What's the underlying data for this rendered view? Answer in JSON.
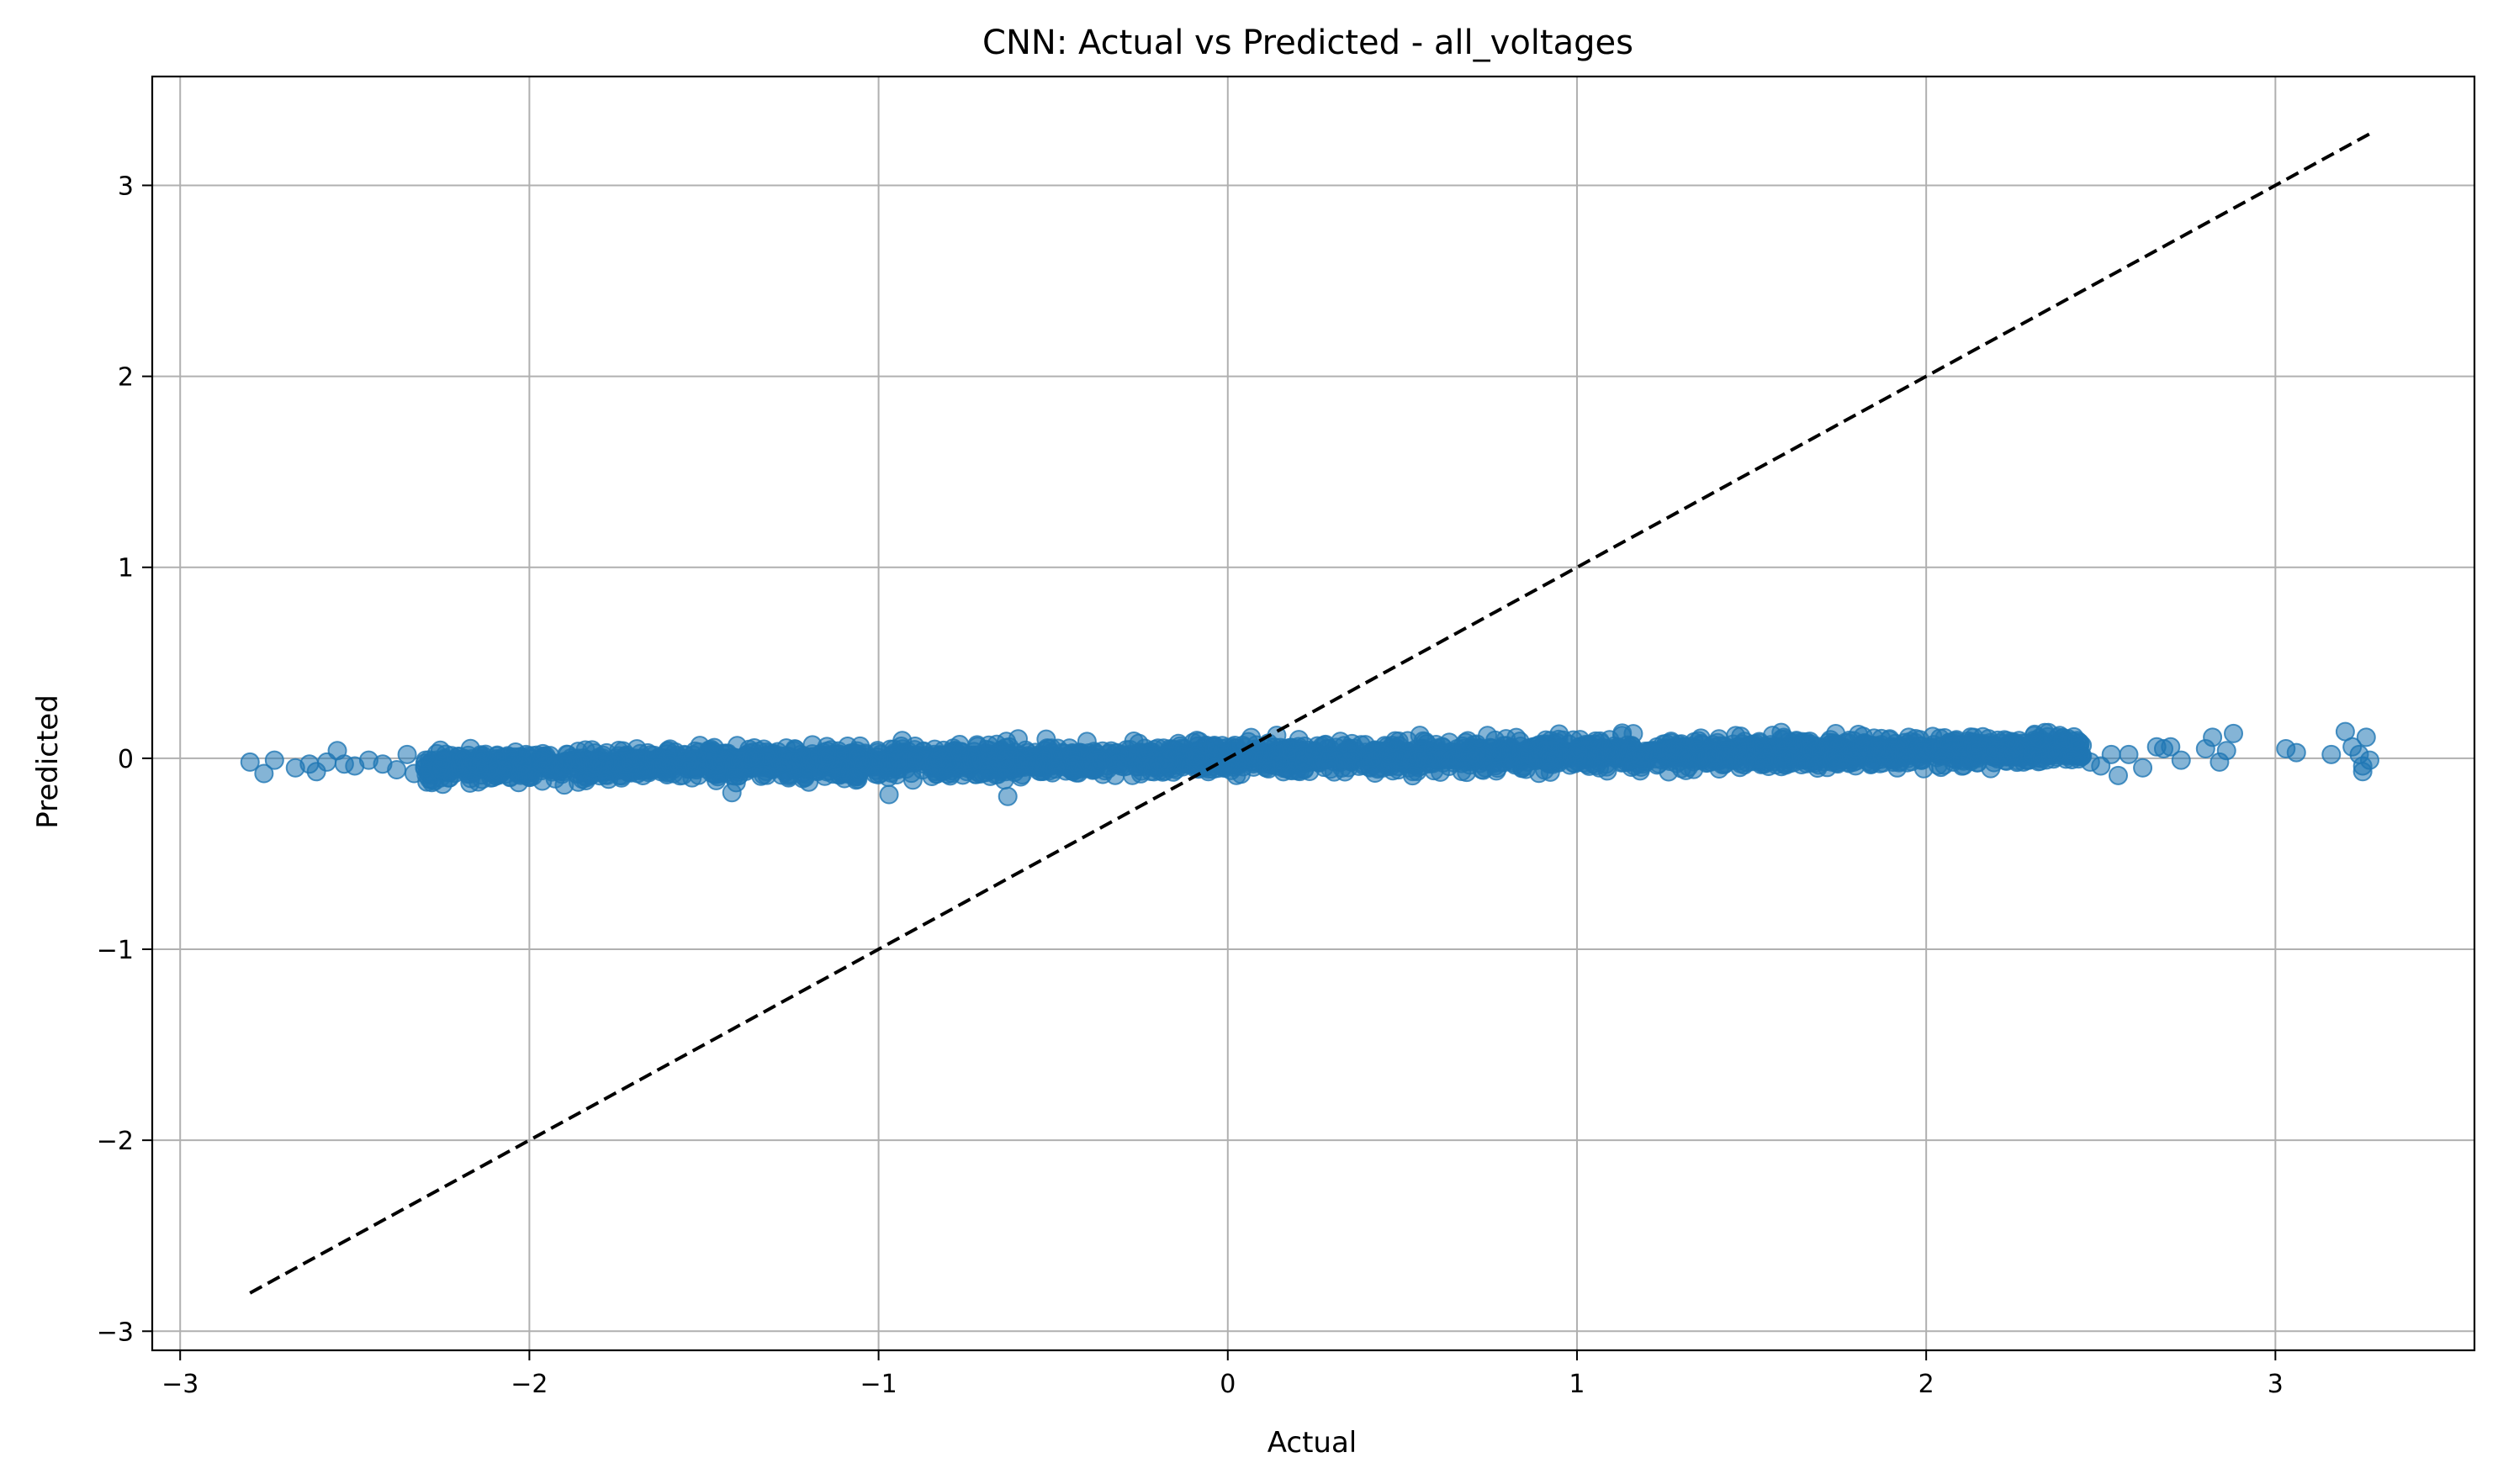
{
  "chart_data": {
    "type": "scatter",
    "title": "CNN: Actual vs Predicted - all_voltages",
    "xlabel": "Actual",
    "ylabel": "Predicted",
    "xlim": [
      -3.08,
      3.57
    ],
    "ylim": [
      -3.1,
      3.57
    ],
    "xticks": [
      -3,
      -2,
      -1,
      0,
      1,
      2,
      3
    ],
    "xtick_labels": [
      "−3",
      "−2",
      "−1",
      "0",
      "1",
      "2",
      "3"
    ],
    "yticks": [
      -3,
      -2,
      -1,
      0,
      1,
      2,
      3
    ],
    "ytick_labels": [
      "−3",
      "−2",
      "−1",
      "0",
      "1",
      "2",
      "3"
    ],
    "grid": true,
    "marker_color": "#1f77b4",
    "marker_alpha": 0.55,
    "reference_line": {
      "style": "dashed",
      "color": "#000000",
      "x": [
        -2.8,
        3.27
      ],
      "y": [
        -2.8,
        3.27
      ]
    },
    "dense_band": {
      "x_range": [
        -2.3,
        2.45
      ],
      "y_center": 0.0,
      "y_spread": 0.1
    },
    "points": [
      [
        -2.8,
        -0.02
      ],
      [
        -2.76,
        -0.08
      ],
      [
        -2.73,
        -0.01
      ],
      [
        -2.67,
        -0.05
      ],
      [
        -2.63,
        -0.03
      ],
      [
        -2.61,
        -0.07
      ],
      [
        -2.58,
        -0.02
      ],
      [
        -2.55,
        0.04
      ],
      [
        -2.53,
        -0.03
      ],
      [
        -2.5,
        -0.04
      ],
      [
        -2.46,
        -0.01
      ],
      [
        -2.42,
        -0.03
      ],
      [
        -2.38,
        -0.06
      ],
      [
        -2.35,
        0.02
      ],
      [
        -2.33,
        -0.08
      ],
      [
        2.47,
        -0.02
      ],
      [
        2.5,
        -0.04
      ],
      [
        2.53,
        0.02
      ],
      [
        2.55,
        -0.09
      ],
      [
        2.58,
        0.02
      ],
      [
        2.62,
        -0.05
      ],
      [
        2.66,
        0.06
      ],
      [
        2.68,
        0.05
      ],
      [
        2.7,
        0.06
      ],
      [
        2.73,
        -0.01
      ],
      [
        2.8,
        0.05
      ],
      [
        2.82,
        0.11
      ],
      [
        2.84,
        -0.02
      ],
      [
        2.88,
        0.13
      ],
      [
        2.86,
        0.04
      ],
      [
        3.03,
        0.05
      ],
      [
        3.06,
        0.03
      ],
      [
        3.16,
        0.02
      ],
      [
        3.2,
        0.14
      ],
      [
        3.22,
        0.06
      ],
      [
        3.24,
        0.02
      ],
      [
        3.25,
        -0.04
      ],
      [
        3.26,
        0.11
      ],
      [
        3.27,
        -0.01
      ],
      [
        3.25,
        -0.07
      ],
      [
        -0.97,
        -0.19
      ],
      [
        -1.42,
        -0.18
      ],
      [
        -0.63,
        -0.2
      ],
      [
        -1.9,
        -0.14
      ],
      [
        -2.17,
        -0.13
      ],
      [
        0.14,
        0.12
      ],
      [
        0.55,
        0.12
      ],
      [
        1.56,
        0.12
      ],
      [
        1.95,
        0.11
      ],
      [
        -0.52,
        0.1
      ]
    ]
  }
}
